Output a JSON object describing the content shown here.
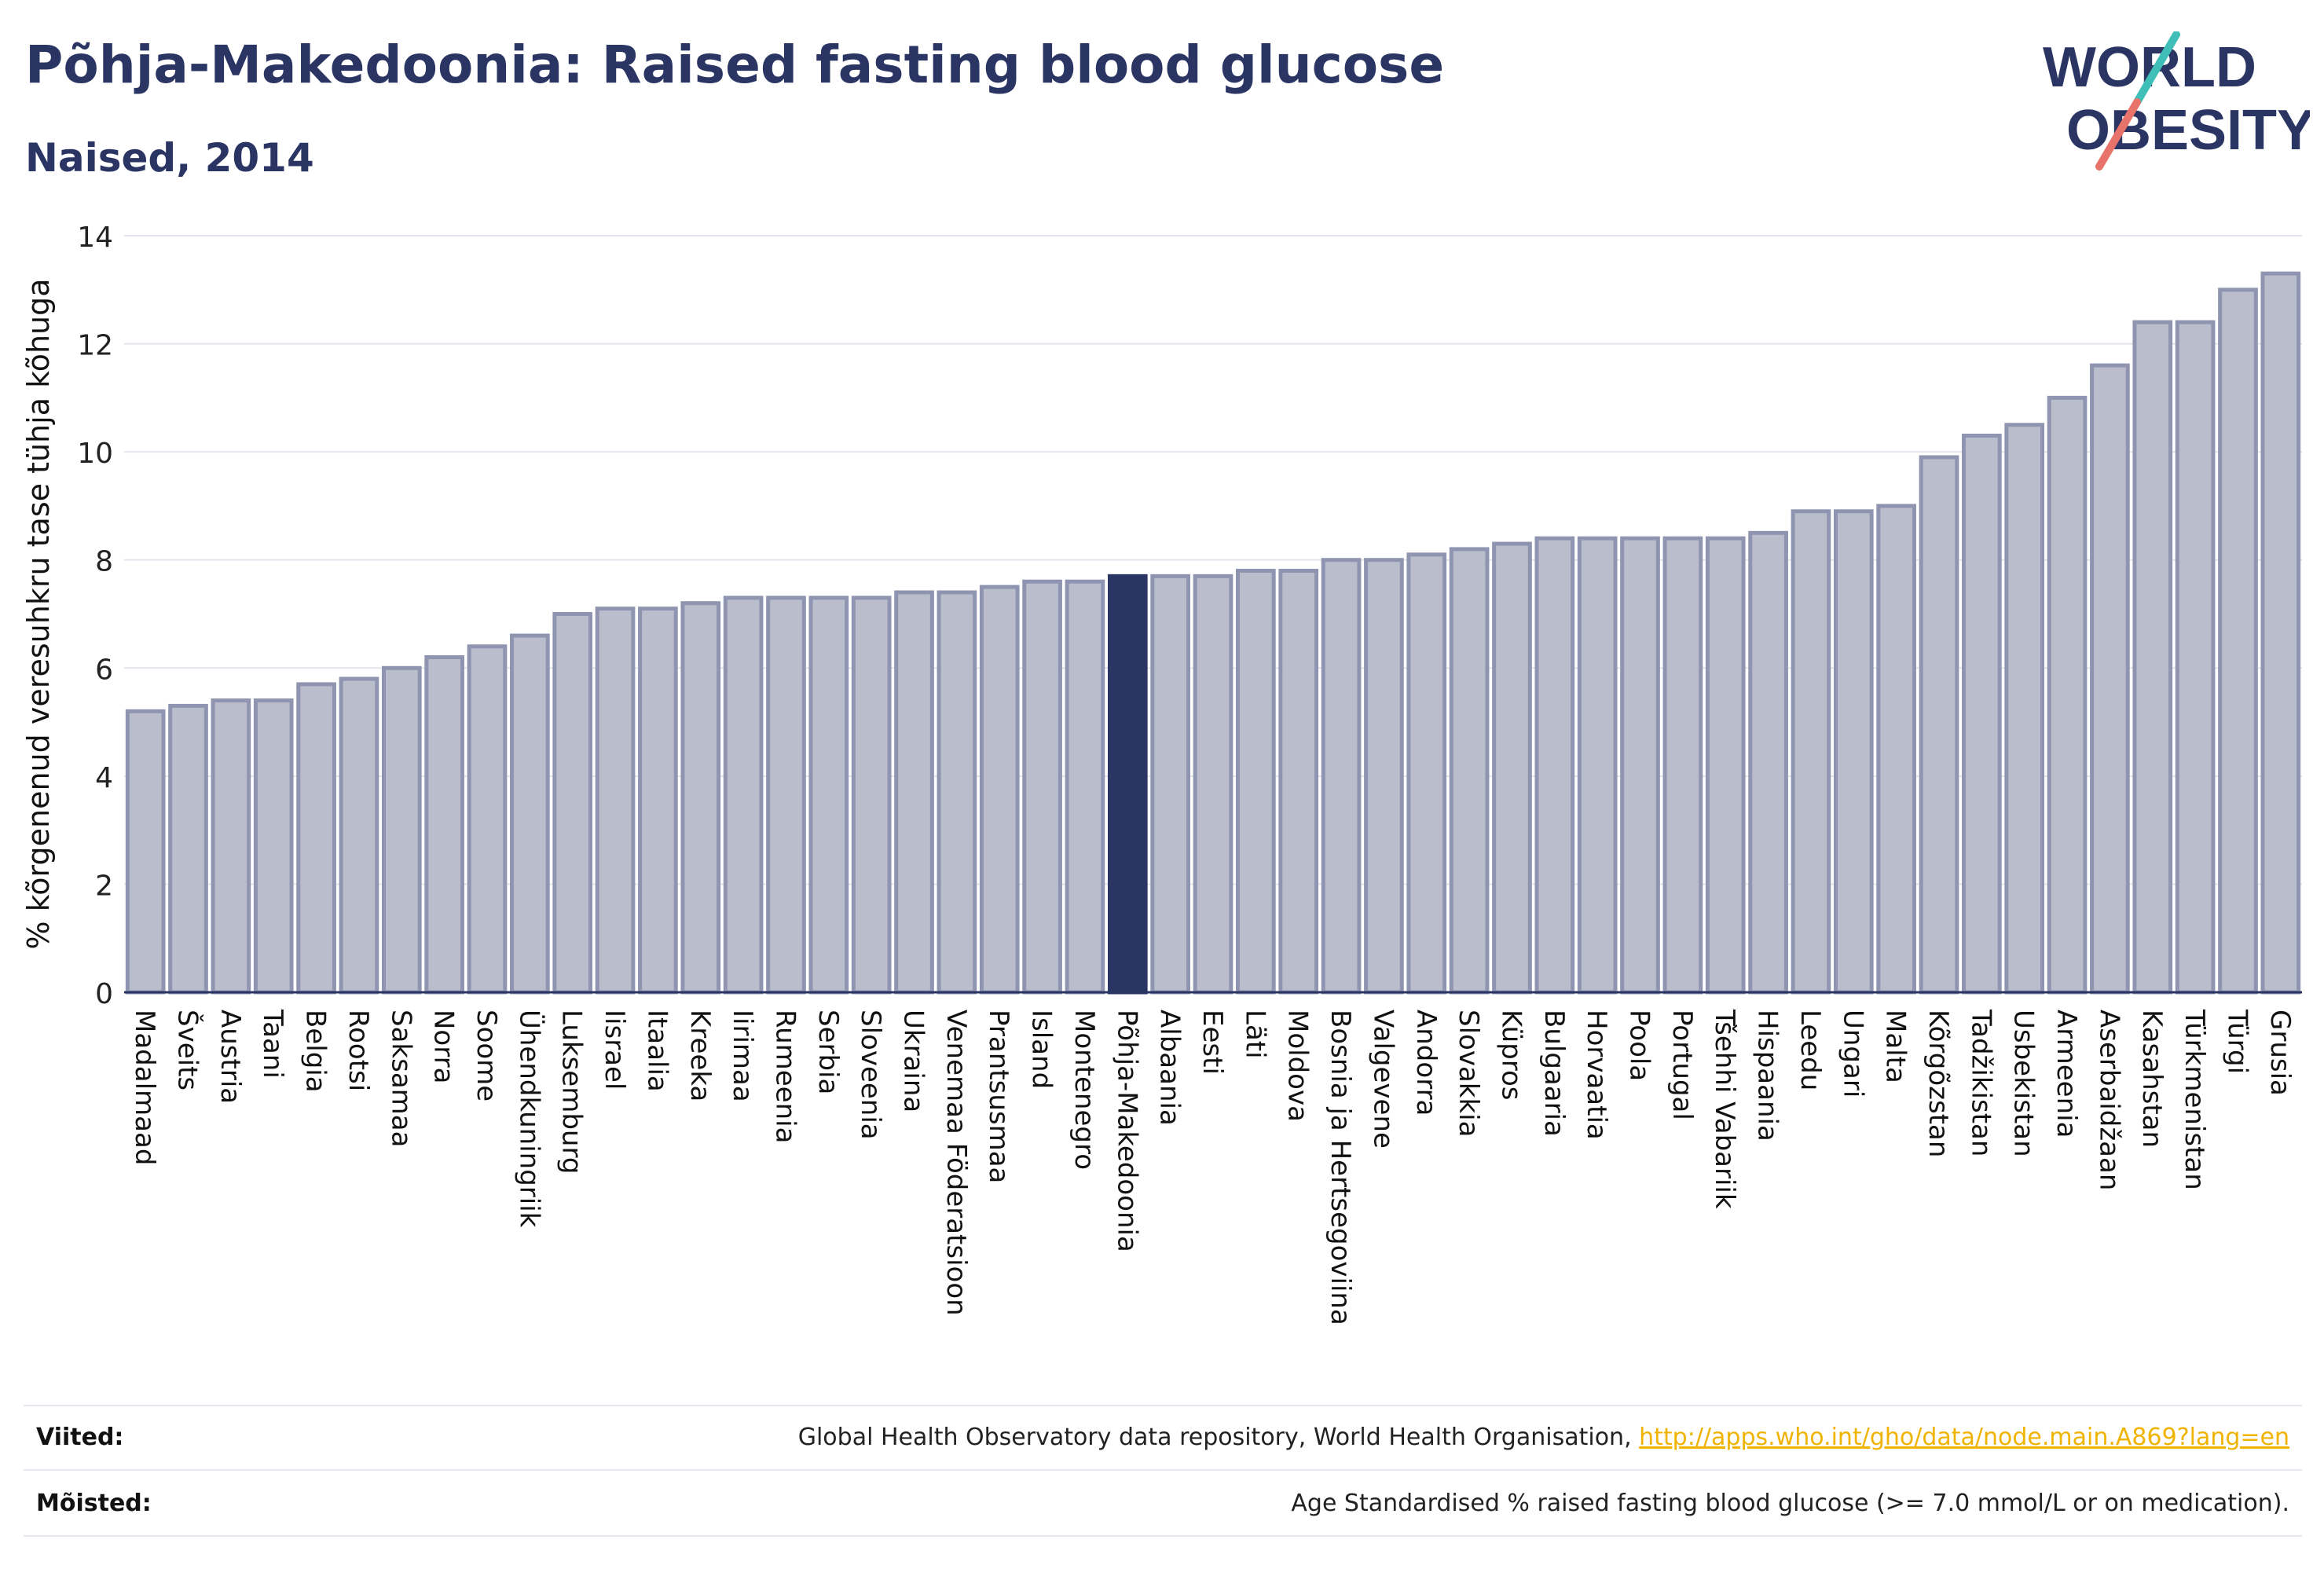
{
  "header": {
    "title": "Põhja-Makedoonia: Raised fasting blood glucose",
    "subtitle": "Naised, 2014"
  },
  "logo": {
    "line1": "WORLD",
    "line2": "OBESITY"
  },
  "colors": {
    "bar": "#b9bdcc",
    "bar_stroke": "#8f95b0",
    "highlight": "#2b3563",
    "grid": "#e3e5ec",
    "axis": "#2b3563",
    "logo_text": "#2b3563",
    "logo_slash_teal": "#3fbfb8",
    "logo_slash_coral": "#e8736a"
  },
  "chart_data": {
    "type": "bar",
    "ylabel": "% kõrgenenud veresuhkru tase tühja kõhuga",
    "ylim": [
      0,
      14
    ],
    "yticks": [
      0,
      2,
      4,
      6,
      8,
      10,
      12,
      14
    ],
    "grid": true,
    "highlight": "Põhja-Makedoonia",
    "categories": [
      "Madalmaad",
      "Šveits",
      "Austria",
      "Taani",
      "Belgia",
      "Rootsi",
      "Saksamaa",
      "Norra",
      "Soome",
      "Ühendkuningriik",
      "Luksemburg",
      "Iisrael",
      "Itaalia",
      "Kreeka",
      "Iirimaa",
      "Rumeenia",
      "Serbia",
      "Sloveenia",
      "Ukraina",
      "Venemaa Föderatsioon",
      "Prantsusmaa",
      "Island",
      "Montenegro",
      "Põhja-Makedoonia",
      "Albaania",
      "Eesti",
      "Läti",
      "Moldova",
      "Bosnia ja Hertsegoviina",
      "Valgevene",
      "Andorra",
      "Slovakkia",
      "Küpros",
      "Bulgaaria",
      "Horvaatia",
      "Poola",
      "Portugal",
      "Tšehhi Vabariik",
      "Hispaania",
      "Leedu",
      "Ungari",
      "Malta",
      "Kõrgõzstan",
      "Tadžikistan",
      "Usbekistan",
      "Armeenia",
      "Aserbaidžaan",
      "Kasahstan",
      "Türkmenistan",
      "Türgi",
      "Grusia"
    ],
    "values": [
      5.2,
      5.3,
      5.4,
      5.4,
      5.7,
      5.8,
      6.0,
      6.2,
      6.4,
      6.6,
      7.0,
      7.1,
      7.1,
      7.2,
      7.3,
      7.3,
      7.3,
      7.3,
      7.4,
      7.4,
      7.5,
      7.6,
      7.6,
      7.7,
      7.7,
      7.7,
      7.8,
      7.8,
      8.0,
      8.0,
      8.1,
      8.2,
      8.3,
      8.4,
      8.4,
      8.4,
      8.4,
      8.4,
      8.5,
      8.9,
      8.9,
      9.0,
      9.9,
      10.3,
      10.5,
      11.0,
      11.6,
      12.4,
      12.4,
      13.0,
      13.3
    ]
  },
  "footer": {
    "sources_label": "Viited:",
    "sources_text": "Global Health Observatory data repository, World Health Organisation, ",
    "sources_link": "http://apps.who.int/gho/data/node.main.A869?lang=en",
    "definitions_label": "Mõisted:",
    "definitions_text": "Age Standardised % raised fasting blood glucose (>= 7.0 mmol/L or on medication)."
  }
}
